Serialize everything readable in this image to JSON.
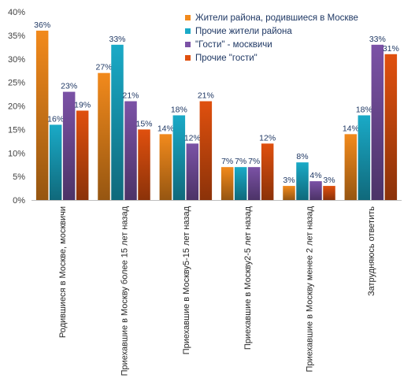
{
  "chart_data": {
    "type": "bar",
    "categories": [
      "Родившиеся в Москве, москвичи",
      "Приехавшие в Москву  более 15 лет назад",
      "Приехавшие в Москву5-15 лет назад",
      "Приехавшие в Москву2-5 лет назад",
      "Приехавшие в Москву менее 2 лет назад",
      "Затрудняюсь ответить"
    ],
    "series": [
      {
        "name": "Жители района, родившиеся  в Москве",
        "color": "#f28a1c",
        "values": [
          36,
          27,
          14,
          7,
          3,
          14
        ]
      },
      {
        "name": "Прочие жители района",
        "color": "#1aaac7",
        "values": [
          16,
          33,
          18,
          7,
          8,
          18
        ]
      },
      {
        "name": "\"Гости\" - москвичи",
        "color": "#7b52a6",
        "values": [
          23,
          21,
          12,
          7,
          4,
          33
        ]
      },
      {
        "name": "Прочие \"гости\"",
        "color": "#e0500e",
        "values": [
          19,
          15,
          21,
          12,
          3,
          31
        ]
      }
    ],
    "value_suffix": "%",
    "y_ticks": [
      "0%",
      "5%",
      "10%",
      "15%",
      "20%",
      "25%",
      "30%",
      "35%",
      "40%"
    ],
    "ylim": [
      0,
      40
    ],
    "grid": false,
    "legend_position": "top-right"
  }
}
